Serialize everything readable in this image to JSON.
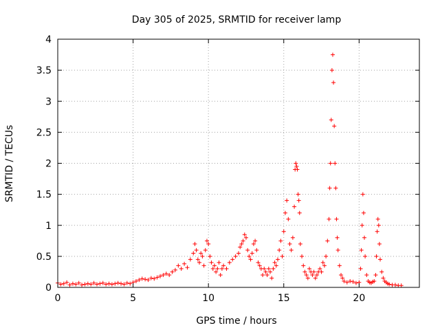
{
  "chart_data": {
    "type": "scatter",
    "title": "Day 305 of 2025, SRMTID for receiver lamp",
    "xlabel": "GPS time / hours",
    "ylabel": "SRMTID / TECUs",
    "xlim": [
      0,
      24
    ],
    "ylim": [
      0,
      4
    ],
    "xticks": [
      "0",
      "5",
      "10",
      "15",
      "20"
    ],
    "yticks": [
      "0",
      "0.5",
      "1",
      "1.5",
      "2",
      "2.5",
      "3",
      "3.5",
      "4"
    ],
    "grid": true,
    "marker": "+",
    "color": "#ff0000",
    "series": [
      {
        "name": "SRMTID",
        "x": [
          0.0,
          0.2,
          0.4,
          0.6,
          0.8,
          1.0,
          1.2,
          1.4,
          1.6,
          1.8,
          2.0,
          2.2,
          2.4,
          2.6,
          2.8,
          3.0,
          3.2,
          3.4,
          3.6,
          3.8,
          4.0,
          4.2,
          4.4,
          4.6,
          4.8,
          5.0,
          5.2,
          5.4,
          5.6,
          5.8,
          6.0,
          6.2,
          6.4,
          6.6,
          6.8,
          7.0,
          7.2,
          7.4,
          7.6,
          7.8,
          8.0,
          8.2,
          8.4,
          8.6,
          8.8,
          9.0,
          9.1,
          9.2,
          9.3,
          9.4,
          9.5,
          9.6,
          9.7,
          9.8,
          9.9,
          10.0,
          10.1,
          10.2,
          10.3,
          10.4,
          10.5,
          10.6,
          10.7,
          10.8,
          10.9,
          11.0,
          11.2,
          11.4,
          11.6,
          11.8,
          12.0,
          12.1,
          12.2,
          12.3,
          12.4,
          12.5,
          12.6,
          12.7,
          12.8,
          12.9,
          13.0,
          13.1,
          13.2,
          13.3,
          13.4,
          13.5,
          13.6,
          13.7,
          13.8,
          13.9,
          14.0,
          14.1,
          14.2,
          14.3,
          14.4,
          14.5,
          14.6,
          14.7,
          14.8,
          14.9,
          15.0,
          15.1,
          15.2,
          15.3,
          15.4,
          15.5,
          15.6,
          15.7,
          15.75,
          15.8,
          15.85,
          15.9,
          15.95,
          16.0,
          16.05,
          16.1,
          16.2,
          16.3,
          16.4,
          16.5,
          16.6,
          16.7,
          16.8,
          16.9,
          17.0,
          17.1,
          17.2,
          17.3,
          17.4,
          17.5,
          17.6,
          17.7,
          17.8,
          17.9,
          18.0,
          18.05,
          18.1,
          18.15,
          18.2,
          18.25,
          18.3,
          18.35,
          18.4,
          18.45,
          18.5,
          18.55,
          18.6,
          18.7,
          18.8,
          18.9,
          19.0,
          19.2,
          19.4,
          19.6,
          19.8,
          20.0,
          20.1,
          20.15,
          20.2,
          20.25,
          20.3,
          20.35,
          20.4,
          20.5,
          20.6,
          20.7,
          20.8,
          20.9,
          21.0,
          21.1,
          21.15,
          21.2,
          21.25,
          21.3,
          21.35,
          21.4,
          21.5,
          21.6,
          21.7,
          21.8,
          21.9,
          22.0,
          22.2,
          22.4,
          22.6,
          22.8
        ],
        "y": [
          0.07,
          0.05,
          0.06,
          0.08,
          0.04,
          0.06,
          0.05,
          0.07,
          0.04,
          0.05,
          0.06,
          0.05,
          0.07,
          0.05,
          0.06,
          0.07,
          0.05,
          0.06,
          0.05,
          0.06,
          0.07,
          0.06,
          0.05,
          0.07,
          0.06,
          0.08,
          0.1,
          0.12,
          0.14,
          0.13,
          0.12,
          0.15,
          0.14,
          0.16,
          0.18,
          0.2,
          0.22,
          0.2,
          0.25,
          0.28,
          0.35,
          0.3,
          0.38,
          0.32,
          0.45,
          0.55,
          0.7,
          0.6,
          0.45,
          0.4,
          0.55,
          0.5,
          0.35,
          0.6,
          0.75,
          0.7,
          0.5,
          0.4,
          0.3,
          0.35,
          0.25,
          0.3,
          0.4,
          0.2,
          0.3,
          0.35,
          0.3,
          0.4,
          0.45,
          0.5,
          0.55,
          0.65,
          0.7,
          0.75,
          0.85,
          0.8,
          0.6,
          0.5,
          0.45,
          0.55,
          0.7,
          0.75,
          0.6,
          0.4,
          0.35,
          0.3,
          0.2,
          0.3,
          0.25,
          0.2,
          0.3,
          0.25,
          0.15,
          0.3,
          0.4,
          0.35,
          0.45,
          0.6,
          0.75,
          0.5,
          0.9,
          1.2,
          1.4,
          1.1,
          0.7,
          0.6,
          0.8,
          1.3,
          1.9,
          2.0,
          1.95,
          1.9,
          1.5,
          1.4,
          1.2,
          0.7,
          0.5,
          0.35,
          0.25,
          0.2,
          0.15,
          0.3,
          0.25,
          0.2,
          0.25,
          0.15,
          0.2,
          0.25,
          0.3,
          0.25,
          0.4,
          0.35,
          0.5,
          0.75,
          1.1,
          1.6,
          2.0,
          2.7,
          3.5,
          3.75,
          3.3,
          2.6,
          2.0,
          1.6,
          1.1,
          0.8,
          0.6,
          0.35,
          0.2,
          0.15,
          0.1,
          0.08,
          0.1,
          0.09,
          0.07,
          0.08,
          0.3,
          0.6,
          1.0,
          1.5,
          1.2,
          0.8,
          0.5,
          0.2,
          0.1,
          0.08,
          0.07,
          0.09,
          0.1,
          0.2,
          0.5,
          0.9,
          1.1,
          1.0,
          0.7,
          0.45,
          0.25,
          0.15,
          0.1,
          0.08,
          0.06,
          0.05,
          0.04,
          0.04,
          0.03,
          0.03
        ]
      }
    ]
  }
}
